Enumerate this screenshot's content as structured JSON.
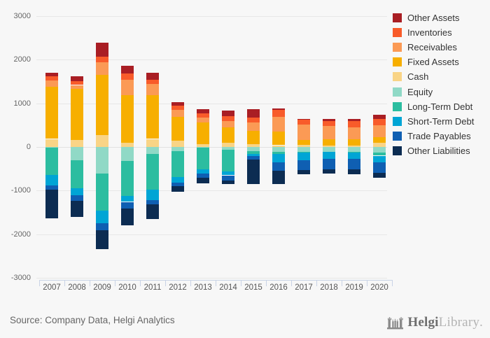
{
  "page": {
    "background": "#f7f7f7"
  },
  "chart_data": {
    "type": "bar",
    "stacked": true,
    "categories": [
      "2007",
      "2008",
      "2009",
      "2010",
      "2011",
      "2012",
      "2013",
      "2014",
      "2015",
      "2016",
      "2017",
      "2018",
      "2019",
      "2020"
    ],
    "ylim": [
      -3000,
      3000
    ],
    "yticks": [
      3000,
      2000,
      1000,
      0,
      -1000,
      -2000,
      -3000
    ],
    "grid": true,
    "legend_position": "right",
    "series": [
      {
        "name": "Other Assets",
        "color": "#a91e24",
        "values": [
          90,
          105,
          320,
          175,
          160,
          90,
          105,
          140,
          195,
          40,
          25,
          45,
          50,
          95
        ]
      },
      {
        "name": "Inventories",
        "color": "#f85b2a",
        "values": [
          90,
          90,
          130,
          145,
          90,
          85,
          90,
          105,
          120,
          150,
          115,
          115,
          145,
          145
        ]
      },
      {
        "name": "Receivables",
        "color": "#fb9a55",
        "values": [
          150,
          95,
          290,
          345,
          255,
          160,
          120,
          145,
          195,
          340,
          355,
          300,
          265,
          280
        ]
      },
      {
        "name": "Fixed Assets",
        "color": "#f7af00",
        "values": [
          1190,
          1165,
          1380,
          1100,
          1005,
          550,
          495,
          355,
          300,
          315,
          110,
          140,
          150,
          125
        ]
      },
      {
        "name": "Cash",
        "color": "#f9d486",
        "values": [
          185,
          160,
          270,
          90,
          185,
          145,
          65,
          95,
          65,
          40,
          45,
          35,
          35,
          95
        ]
      },
      {
        "name": "Equity",
        "color": "#90d9c6",
        "values": [
          -20,
          -310,
          -610,
          -320,
          -160,
          -90,
          -10,
          -65,
          -90,
          -115,
          -105,
          -105,
          -105,
          -130
        ]
      },
      {
        "name": "Long-Term Debt",
        "color": "#2cbda0",
        "values": [
          -620,
          -630,
          -845,
          -810,
          -820,
          -600,
          -510,
          -495,
          -70,
          -40,
          -25,
          0,
          -15,
          -70
        ]
      },
      {
        "name": "Short-Term Debt",
        "color": "#00a5d5",
        "values": [
          -240,
          -160,
          -290,
          -130,
          -240,
          -120,
          -90,
          -90,
          -40,
          -200,
          -170,
          -160,
          -155,
          -145
        ]
      },
      {
        "name": "Trade Payables",
        "color": "#0f5fb2",
        "values": [
          -100,
          -130,
          -160,
          -150,
          -90,
          -90,
          -90,
          -125,
          -85,
          -185,
          -230,
          -255,
          -240,
          -240
        ]
      },
      {
        "name": "Other Liabilities",
        "color": "#0c2c52",
        "values": [
          -660,
          -370,
          -435,
          -390,
          -350,
          -130,
          -140,
          -70,
          -570,
          -305,
          -90,
          -90,
          -105,
          -115
        ]
      }
    ]
  },
  "footer": {
    "source_text": "Source: Company Data, Helgi Analytics",
    "logo": {
      "brand_primary": "Helgi",
      "brand_secondary": "Library",
      "suffix": "."
    }
  }
}
